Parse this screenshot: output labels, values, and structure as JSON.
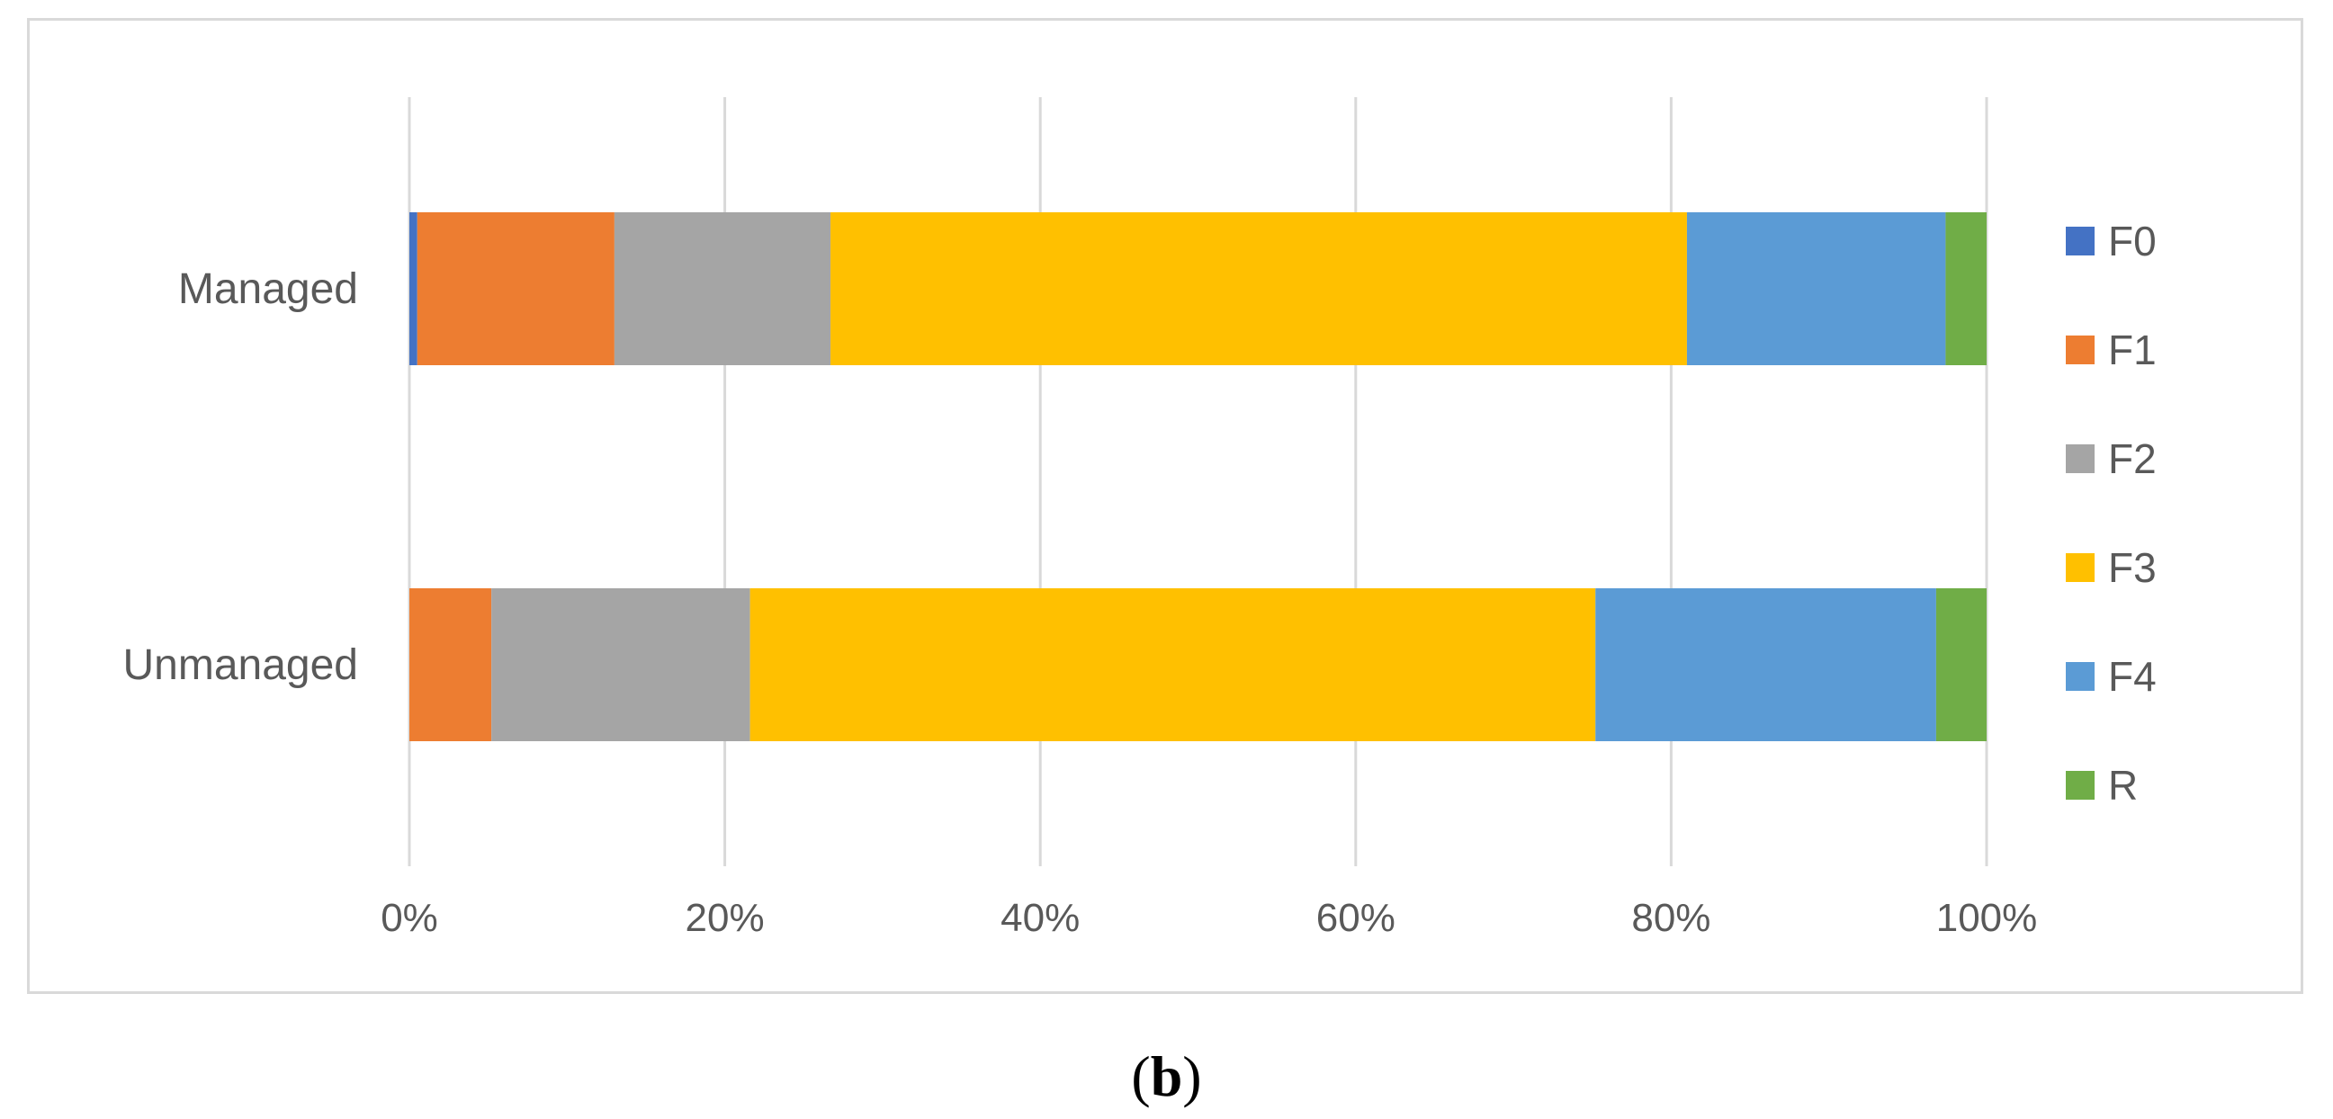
{
  "panel_label": {
    "open": "(",
    "letter": "b",
    "close": ")"
  },
  "chart_data": {
    "type": "bar",
    "orientation": "horizontal",
    "stacked": "percent",
    "categories": [
      "Managed",
      "Unmanaged"
    ],
    "series": [
      {
        "name": "F0",
        "color": "#4472C4",
        "values": [
          0.5,
          0.0
        ]
      },
      {
        "name": "F1",
        "color": "#ED7D31",
        "values": [
          12.5,
          5.2
        ]
      },
      {
        "name": "F2",
        "color": "#A5A5A5",
        "values": [
          13.7,
          16.4
        ]
      },
      {
        "name": "F3",
        "color": "#FFC000",
        "values": [
          54.3,
          53.6
        ]
      },
      {
        "name": "F4",
        "color": "#5B9BD5",
        "values": [
          16.4,
          21.6
        ]
      },
      {
        "name": "R",
        "color": "#70AD47",
        "values": [
          2.6,
          3.2
        ]
      }
    ],
    "x_ticks": [
      "0%",
      "20%",
      "40%",
      "60%",
      "80%",
      "100%"
    ],
    "xlim": [
      0,
      100
    ],
    "grid": "vertical",
    "legend": "right",
    "title": "",
    "xlabel": "",
    "ylabel": ""
  }
}
